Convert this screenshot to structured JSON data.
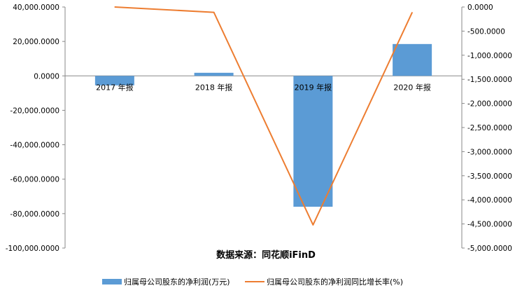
{
  "chart_data": {
    "type": "bar+line",
    "categories": [
      "2017 年报",
      "2018 年报",
      "2019 年报",
      "2020 年报"
    ],
    "series": [
      {
        "name": "归属母公司股东的净利润(万元)",
        "type": "bar",
        "axis": "left",
        "color": "#5b9bd5",
        "values": [
          -5500,
          1800,
          -76000,
          18500
        ]
      },
      {
        "name": "归属母公司股东的净利润同比增长率(%)",
        "type": "line",
        "axis": "right",
        "color": "#ed7d31",
        "values": [
          0,
          -110,
          -4520,
          -110
        ]
      }
    ],
    "y_left": {
      "min": -100000,
      "max": 40000,
      "step": 20000,
      "ticks": [
        "40,000.0000",
        "20,000.0000",
        "0.0000",
        "-20,000.0000",
        "-40,000.0000",
        "-60,000.0000",
        "-80,000.0000",
        "-100,000.0000"
      ]
    },
    "y_right": {
      "min": -5000,
      "max": 0,
      "step": 500,
      "ticks": [
        "0.0000",
        "-500.0000",
        "-1,000.0000",
        "-1,500.0000",
        "-2,000.0000",
        "-2,500.0000",
        "-3,000.0000",
        "-3,500.0000",
        "-4,000.0000",
        "-4,500.0000",
        "-5,000.0000"
      ]
    },
    "source_note": "数据来源：同花顺iFinD",
    "grid": false,
    "legend_position": "bottom"
  }
}
